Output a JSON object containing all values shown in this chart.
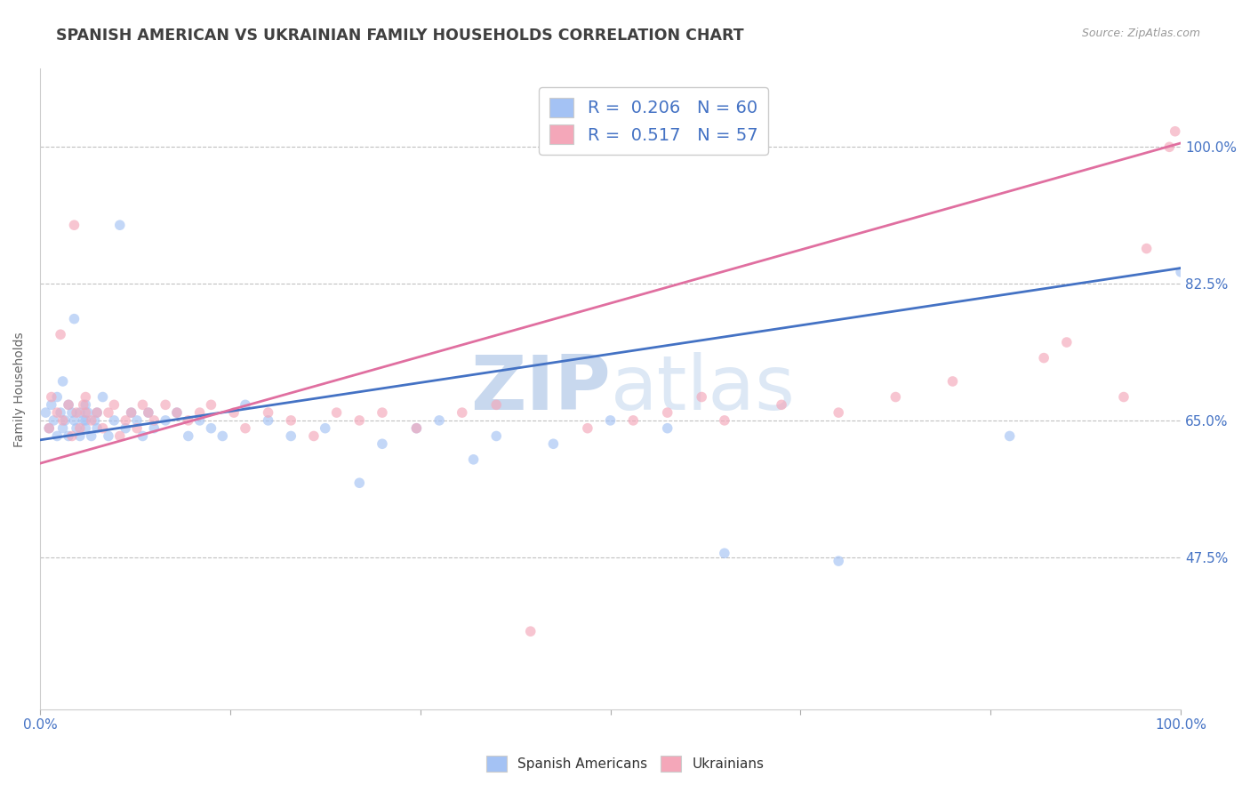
{
  "title": "SPANISH AMERICAN VS UKRAINIAN FAMILY HOUSEHOLDS CORRELATION CHART",
  "source_text": "Source: ZipAtlas.com",
  "ylabel": "Family Households",
  "x_min": 0.0,
  "x_max": 1.0,
  "y_min": 0.28,
  "y_max": 1.1,
  "yticks": [
    0.475,
    0.65,
    0.825,
    1.0
  ],
  "ytick_labels": [
    "47.5%",
    "65.0%",
    "82.5%",
    "100.0%"
  ],
  "xticks": [
    0.0,
    0.1667,
    0.3333,
    0.5,
    0.6667,
    0.8333,
    1.0
  ],
  "xtick_labels_show": [
    "0.0%",
    "",
    "",
    "",
    "",
    "",
    "100.0%"
  ],
  "blue_color": "#a4c2f4",
  "pink_color": "#f4a7b9",
  "blue_line_color": "#4472c4",
  "pink_line_color": "#e06fa0",
  "tick_label_color": "#4472c4",
  "title_color": "#404040",
  "grid_color": "#c0c0c0",
  "watermark_color": "#d5e5f5",
  "r_blue": 0.206,
  "n_blue": 60,
  "r_pink": 0.517,
  "n_pink": 57,
  "blue_scatter_x": [
    0.005,
    0.008,
    0.01,
    0.012,
    0.015,
    0.015,
    0.018,
    0.02,
    0.02,
    0.022,
    0.025,
    0.025,
    0.028,
    0.03,
    0.03,
    0.032,
    0.035,
    0.035,
    0.038,
    0.04,
    0.04,
    0.04,
    0.042,
    0.045,
    0.048,
    0.05,
    0.05,
    0.055,
    0.06,
    0.065,
    0.07,
    0.075,
    0.08,
    0.085,
    0.09,
    0.095,
    0.1,
    0.11,
    0.12,
    0.13,
    0.14,
    0.15,
    0.16,
    0.18,
    0.2,
    0.22,
    0.25,
    0.28,
    0.3,
    0.33,
    0.35,
    0.38,
    0.4,
    0.45,
    0.5,
    0.55,
    0.6,
    0.7,
    0.85,
    1.0
  ],
  "blue_scatter_y": [
    0.66,
    0.64,
    0.67,
    0.65,
    0.63,
    0.68,
    0.66,
    0.64,
    0.7,
    0.65,
    0.63,
    0.67,
    0.66,
    0.78,
    0.65,
    0.64,
    0.63,
    0.66,
    0.65,
    0.64,
    0.67,
    0.65,
    0.66,
    0.63,
    0.65,
    0.64,
    0.66,
    0.68,
    0.63,
    0.65,
    0.9,
    0.64,
    0.66,
    0.65,
    0.63,
    0.66,
    0.64,
    0.65,
    0.66,
    0.63,
    0.65,
    0.64,
    0.63,
    0.67,
    0.65,
    0.63,
    0.64,
    0.57,
    0.62,
    0.64,
    0.65,
    0.6,
    0.63,
    0.62,
    0.65,
    0.64,
    0.48,
    0.47,
    0.63,
    0.84
  ],
  "pink_scatter_x": [
    0.008,
    0.01,
    0.015,
    0.018,
    0.02,
    0.025,
    0.028,
    0.03,
    0.032,
    0.035,
    0.038,
    0.04,
    0.04,
    0.045,
    0.05,
    0.055,
    0.06,
    0.065,
    0.07,
    0.075,
    0.08,
    0.085,
    0.09,
    0.095,
    0.1,
    0.11,
    0.12,
    0.13,
    0.14,
    0.15,
    0.17,
    0.18,
    0.2,
    0.22,
    0.24,
    0.26,
    0.28,
    0.3,
    0.33,
    0.37,
    0.4,
    0.43,
    0.48,
    0.52,
    0.55,
    0.58,
    0.6,
    0.65,
    0.7,
    0.75,
    0.8,
    0.88,
    0.9,
    0.95,
    0.97,
    0.99,
    0.995
  ],
  "pink_scatter_y": [
    0.64,
    0.68,
    0.66,
    0.76,
    0.65,
    0.67,
    0.63,
    0.9,
    0.66,
    0.64,
    0.67,
    0.66,
    0.68,
    0.65,
    0.66,
    0.64,
    0.66,
    0.67,
    0.63,
    0.65,
    0.66,
    0.64,
    0.67,
    0.66,
    0.65,
    0.67,
    0.66,
    0.65,
    0.66,
    0.67,
    0.66,
    0.64,
    0.66,
    0.65,
    0.63,
    0.66,
    0.65,
    0.66,
    0.64,
    0.66,
    0.67,
    0.38,
    0.64,
    0.65,
    0.66,
    0.68,
    0.65,
    0.67,
    0.66,
    0.68,
    0.7,
    0.73,
    0.75,
    0.68,
    0.87,
    1.0,
    1.02
  ],
  "blue_trend_y_start": 0.625,
  "blue_trend_y_end": 0.845,
  "pink_trend_y_start": 0.595,
  "pink_trend_y_end": 1.005,
  "marker_size": 70,
  "marker_alpha": 0.65,
  "fig_width": 14.06,
  "fig_height": 8.92,
  "dpi": 100
}
